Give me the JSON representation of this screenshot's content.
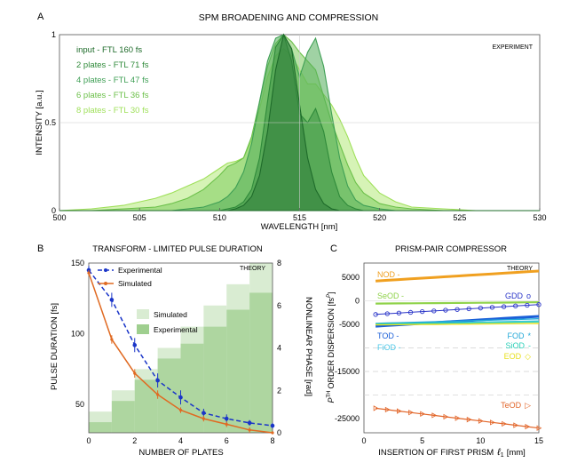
{
  "colors": {
    "input": "#1e6b2a",
    "p2": "#2f8a3a",
    "p4": "#3f9f55",
    "p6": "#6cc04a",
    "p8": "#9fe05a",
    "experimental": "#1a35c8",
    "simulated": "#e06a22",
    "exp_phase": "#9fcf8f",
    "sim_phase": "#d9ecd2",
    "nod": "#f0a020",
    "seod": "#8fd24a",
    "gdd": "#2a35c8",
    "tod": "#1a5fd8",
    "fod": "#22a8d8",
    "fiod": "#4cc8e8",
    "sioD": "#2ad0b8",
    "eod": "#e8e020",
    "teod": "#e2662a"
  },
  "chart_data": [
    {
      "panel": "A",
      "type": "area",
      "title": "SPM BROADENING AND COMPRESSION",
      "xlabel": "WAVELENGTH [nm]",
      "ylabel": "INTENSITY [a.u.]",
      "annotation": "EXPERIMENT",
      "xlim": [
        500,
        530
      ],
      "ylim": [
        0,
        1
      ],
      "x_ticks": [
        "500",
        "505",
        "510",
        "515",
        "520",
        "525",
        "530"
      ],
      "y_ticks": [
        "0",
        "0.5",
        "1"
      ],
      "grid": true,
      "legend_position": "top-left",
      "x": [
        500,
        502,
        504,
        506,
        507,
        508,
        509,
        510,
        510.5,
        511,
        511.5,
        512,
        512.5,
        513,
        513.5,
        514,
        514.5,
        515,
        515.5,
        516,
        516.5,
        517,
        517.5,
        518,
        518.5,
        519,
        520,
        521,
        522,
        524,
        526,
        528,
        530
      ],
      "series": [
        {
          "name": "input   - FTL 160 fs",
          "values": [
            0,
            0,
            0,
            0,
            0,
            0,
            0,
            0,
            0,
            0.01,
            0.03,
            0.08,
            0.2,
            0.45,
            0.8,
            1,
            0.92,
            0.6,
            0.3,
            0.12,
            0.04,
            0.01,
            0,
            0,
            0,
            0,
            0,
            0,
            0,
            0,
            0,
            0,
            0
          ]
        },
        {
          "name": "2 plates - FTL 71 fs",
          "values": [
            0,
            0,
            0,
            0,
            0,
            0,
            0,
            0,
            0.01,
            0.02,
            0.05,
            0.12,
            0.3,
            0.62,
            0.93,
            1,
            0.85,
            0.55,
            0.5,
            0.58,
            0.45,
            0.22,
            0.08,
            0.03,
            0.01,
            0,
            0,
            0,
            0,
            0,
            0,
            0,
            0
          ]
        },
        {
          "name": "4 plates - FTL 47 fs",
          "values": [
            0,
            0,
            0,
            0,
            0,
            0.01,
            0.02,
            0.05,
            0.08,
            0.13,
            0.22,
            0.38,
            0.62,
            0.85,
            0.98,
            1,
            0.92,
            0.76,
            0.9,
            0.98,
            0.82,
            0.55,
            0.3,
            0.14,
            0.06,
            0.03,
            0.01,
            0,
            0,
            0,
            0,
            0,
            0
          ]
        },
        {
          "name": "6 plates - FTL 36 fs",
          "values": [
            0,
            0,
            0.01,
            0.02,
            0.04,
            0.07,
            0.12,
            0.2,
            0.25,
            0.27,
            0.3,
            0.42,
            0.62,
            0.82,
            0.95,
            1,
            0.96,
            0.9,
            0.85,
            0.8,
            0.65,
            0.5,
            0.38,
            0.26,
            0.16,
            0.1,
            0.04,
            0.02,
            0.01,
            0,
            0,
            0,
            0
          ]
        },
        {
          "name": "8 plates - FTL 30 fs",
          "values": [
            0,
            0.01,
            0.03,
            0.07,
            0.1,
            0.14,
            0.18,
            0.24,
            0.27,
            0.28,
            0.3,
            0.4,
            0.58,
            0.76,
            0.88,
            0.92,
            0.88,
            0.8,
            0.72,
            0.72,
            0.66,
            0.6,
            0.52,
            0.42,
            0.3,
            0.2,
            0.1,
            0.05,
            0.02,
            0.01,
            0,
            0,
            0
          ]
        }
      ]
    },
    {
      "panel": "B",
      "type": "line",
      "title": "TRANSFORM - LIMITED PULSE DURATION",
      "xlabel": "NUMBER OF PLATES",
      "ylabel": "PULSE DURATION [fs]",
      "y2label": "NONLINEAR PHASE [rad]",
      "annotation": "THEORY",
      "xlim": [
        0,
        8
      ],
      "ylim": [
        30,
        150
      ],
      "y2lim": [
        0,
        8
      ],
      "x_ticks": [
        "0",
        "2",
        "4",
        "6",
        "8"
      ],
      "y_ticks": [
        "50",
        "100",
        "150"
      ],
      "y2_ticks": [
        "0",
        "2",
        "4",
        "6",
        "8"
      ],
      "legend_position": "top-left",
      "series": [
        {
          "name": "Experimental",
          "x": [
            0,
            1,
            2,
            3,
            4,
            5,
            6,
            7,
            8
          ],
          "values": [
            145,
            124,
            92,
            67,
            55,
            44,
            40,
            37,
            35
          ],
          "err": [
            3,
            5,
            5,
            5,
            5,
            3,
            3,
            2,
            2
          ]
        },
        {
          "name": "Simulated",
          "x": [
            0,
            1,
            2,
            3,
            4,
            5,
            6,
            7,
            8
          ],
          "values": [
            143,
            96,
            72,
            57,
            46,
            40,
            36,
            32,
            30
          ],
          "err": [
            2,
            3,
            3,
            3,
            2,
            2,
            2,
            2,
            1
          ]
        }
      ],
      "phase_series": [
        {
          "name": "Simulated",
          "x": [
            1,
            2,
            3,
            4,
            5,
            6,
            7,
            8
          ],
          "values": [
            1,
            2,
            3,
            4,
            5,
            6,
            7,
            8
          ]
        },
        {
          "name": "Experimental",
          "x": [
            1,
            2,
            3,
            4,
            5,
            6,
            7,
            8
          ],
          "values": [
            0.5,
            1.5,
            2.5,
            3.5,
            4.2,
            5,
            5.8,
            6.6
          ]
        }
      ]
    },
    {
      "panel": "C",
      "type": "line",
      "title": "PRISM-PAIR COMPRESSOR",
      "xlabel": "INSERTION OF FIRST PRISM",
      "xlabel_symbol": "ℓ",
      "xlabel_subscript": "1",
      "xlabel_unit": "[mm]",
      "ylabel_symbol": "P",
      "ylabel_superscript": "TH",
      "ylabel": "ORDER DISPERSION [fs",
      "ylabel_superscript_2": "P",
      "ylabel_end": "]",
      "annotation": "THEORY",
      "xlim": [
        0,
        15
      ],
      "ylim": [
        -28000,
        8000
      ],
      "x_ticks": [
        "0",
        "5",
        "10",
        "15"
      ],
      "y_ticks": [
        "5000",
        "0",
        "-5000",
        "-15000",
        "-25000"
      ],
      "x": [
        1,
        2,
        3,
        4,
        5,
        6,
        7,
        8,
        9,
        10,
        11,
        12,
        13,
        14,
        15
      ],
      "series": [
        {
          "name": "NOD -",
          "values": [
            4200,
            4350,
            4500,
            4650,
            4800,
            4950,
            5100,
            5250,
            5400,
            5550,
            5700,
            5850,
            6000,
            6150,
            6300
          ],
          "marker": "none"
        },
        {
          "name": "SeOD -",
          "values": [
            -600,
            -580,
            -560,
            -540,
            -520,
            -500,
            -480,
            -460,
            -440,
            -420,
            -400,
            -380,
            -360,
            -340,
            -320
          ],
          "marker": "none"
        },
        {
          "name": "GDD",
          "symbol": "o",
          "values": [
            -2900,
            -2750,
            -2600,
            -2450,
            -2300,
            -2150,
            -2000,
            -1850,
            -1700,
            -1550,
            -1400,
            -1250,
            -1100,
            -950,
            -800
          ],
          "marker": "circle"
        },
        {
          "name": "TOD -",
          "values": [
            -5400,
            -5250,
            -5100,
            -4950,
            -4800,
            -4650,
            -4500,
            -4350,
            -4200,
            -4050,
            -3900,
            -3750,
            -3600,
            -3450,
            -3300
          ],
          "marker": "none"
        },
        {
          "name": "FOD",
          "symbol": "*",
          "values": [
            -4800,
            -4730,
            -4660,
            -4590,
            -4520,
            -4450,
            -4380,
            -4310,
            -4240,
            -4170,
            -4100,
            -4030,
            -3960,
            -3890,
            -3820
          ],
          "marker": "none"
        },
        {
          "name": "FiOD -",
          "values": [
            -5000,
            -4950,
            -4900,
            -4850,
            -4800,
            -4750,
            -4700,
            -4650,
            -4600,
            -4550,
            -4500,
            -4450,
            -4400,
            -4350,
            -4300
          ],
          "marker": "none"
        },
        {
          "name": "SiOD",
          "symbol": "-",
          "values": [
            -4900,
            -4870,
            -4840,
            -4810,
            -4780,
            -4750,
            -4720,
            -4690,
            -4660,
            -4630,
            -4600,
            -4570,
            -4540,
            -4510,
            -4480
          ],
          "marker": "none"
        },
        {
          "name": "EOD",
          "symbol": "◇",
          "values": [
            -5100,
            -5080,
            -5060,
            -5040,
            -5020,
            -5000,
            -4980,
            -4960,
            -4940,
            -4920,
            -4900,
            -4880,
            -4860,
            -4840,
            -4820
          ],
          "marker": "none"
        },
        {
          "name": "TeOD",
          "symbol": "▷",
          "values": [
            -22800,
            -23100,
            -23400,
            -23700,
            -24000,
            -24300,
            -24600,
            -24900,
            -25200,
            -25500,
            -25800,
            -26100,
            -26400,
            -26700,
            -27000
          ],
          "marker": "triangle"
        }
      ]
    }
  ],
  "panel_labels": {
    "a": "A",
    "b": "B",
    "c": "C"
  }
}
